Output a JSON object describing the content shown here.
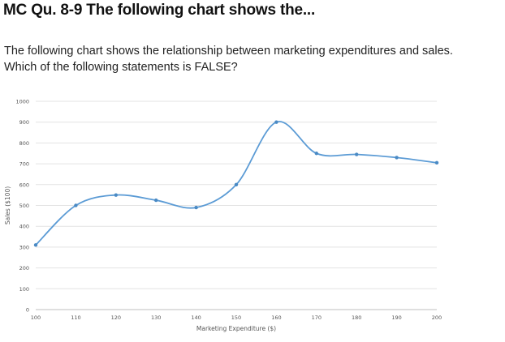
{
  "question": {
    "heading": "MC Qu. 8-9 The following chart shows the...",
    "line1": "The following chart shows the relationship between marketing expenditures and sales.",
    "line2": "Which of the following statements is FALSE?"
  },
  "chart_data": {
    "type": "line",
    "smooth": true,
    "x": [
      100,
      110,
      120,
      130,
      140,
      150,
      160,
      170,
      180,
      190,
      200
    ],
    "y": [
      310,
      500,
      550,
      525,
      490,
      600,
      900,
      750,
      745,
      730,
      705
    ],
    "xlabel": "Marketing Expenditure ($)",
    "ylabel": "Sales ($100)",
    "xlim": [
      100,
      200
    ],
    "ylim": [
      0,
      1000
    ],
    "xticks": [
      "100",
      "110",
      "120",
      "130",
      "140",
      "150",
      "160",
      "170",
      "180",
      "190",
      "200"
    ],
    "yticks": [
      "0",
      "100",
      "200",
      "300",
      "400",
      "500",
      "600",
      "700",
      "800",
      "900",
      "1000"
    ],
    "grid": "horizontal",
    "line_color": "#5b9bd5",
    "marker_color": "#4a8ac4"
  }
}
